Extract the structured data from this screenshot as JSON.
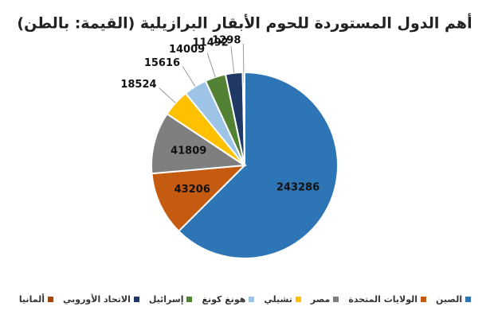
{
  "chart_data": {
    "type": "pie",
    "title": "أهم الدول المستوردة للحوم الأبقار البرازيلية (القيمة: بالطن)",
    "categories": [
      "الصين",
      "الولايات المتحدة",
      "مصر",
      "تشيلي",
      "هونغ كونغ",
      "إسرائيل",
      "الاتحاد الأوروبي",
      "ألمانيا"
    ],
    "values": [
      243286,
      43206,
      41809,
      18524,
      15616,
      14009,
      11492,
      1298
    ],
    "colors": [
      "#2e75b6",
      "#c55a11",
      "#7f7f7f",
      "#ffc000",
      "#9dc3e6",
      "#548235",
      "#1f3864",
      "#9e480e"
    ],
    "legend": "bottom"
  }
}
